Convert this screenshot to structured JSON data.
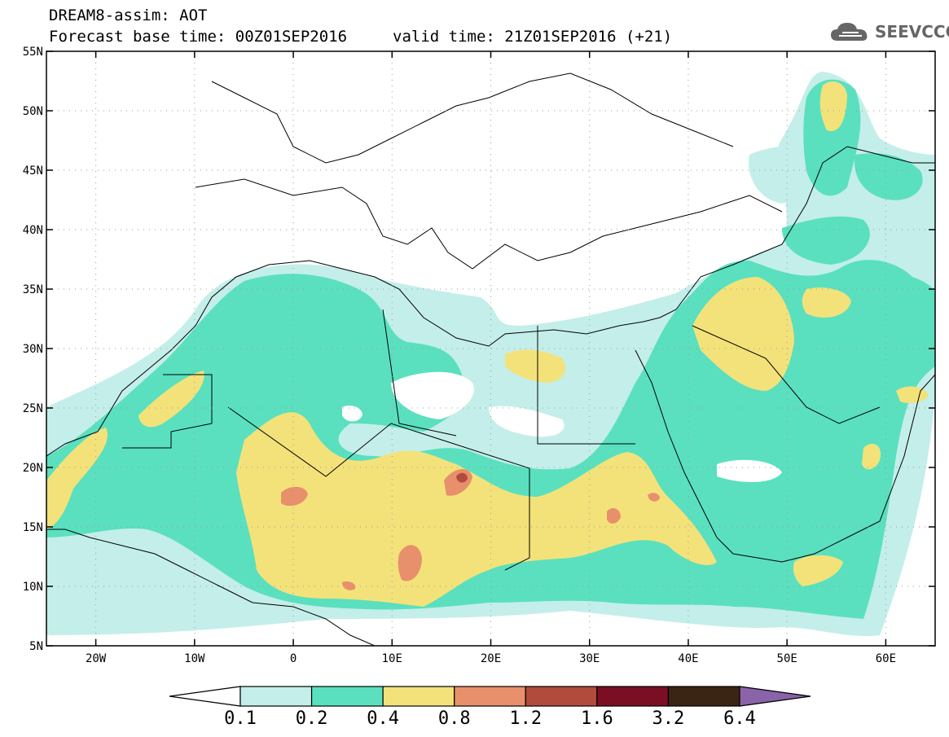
{
  "header": {
    "title": "DREAM8-assim: AOT",
    "base_time": "Forecast base time: 00Z01SEP2016",
    "valid_time": "valid time: 21Z01SEP2016 (+21)"
  },
  "logo": {
    "text": "SEEVCCC",
    "icon": "cloud-icon"
  },
  "map": {
    "lon_labels": [
      "20W",
      "10W",
      "0",
      "10E",
      "20E",
      "30E",
      "40E",
      "50E",
      "60E"
    ],
    "lat_labels": [
      "55N",
      "50N",
      "45N",
      "40N",
      "35N",
      "30N",
      "25N",
      "20N",
      "15N",
      "10N",
      "5N"
    ]
  },
  "colorbar": {
    "levels": [
      "0.1",
      "0.2",
      "0.4",
      "0.8",
      "1.2",
      "1.6",
      "3.2",
      "6.4"
    ],
    "colors": [
      "#c4eee9",
      "#5ae0bf",
      "#f3e27a",
      "#e88f6c",
      "#b14b3c",
      "#7a0f24",
      "#3a2414",
      "#8a63a8"
    ]
  },
  "colors": {
    "c01": "#c4eee9",
    "c02": "#5ae0bf",
    "c04": "#f3e27a",
    "c08": "#e88f6c",
    "c12": "#b14b3c",
    "c16": "#7a0f24"
  }
}
